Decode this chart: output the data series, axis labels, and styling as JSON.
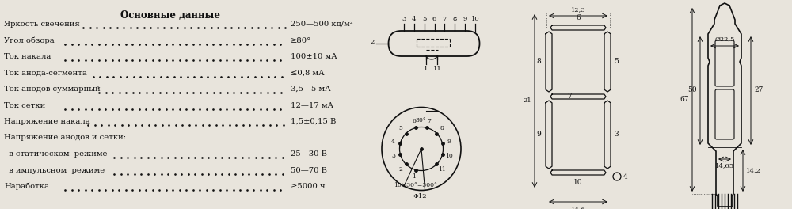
{
  "bg_color": "#e8e4dc",
  "title": "Основные данные",
  "rows": [
    [
      "Яркость свечения",
      "250—500 кд/м²"
    ],
    [
      "Угол обзора",
      "≥80°"
    ],
    [
      "Ток накала",
      "100±10 мА"
    ],
    [
      "Ток анода-сегмента",
      "≤0,8 мА"
    ],
    [
      "Ток анодов суммарный",
      "3,5—5 мА"
    ],
    [
      "Ток сетки",
      "12—17 мА"
    ],
    [
      "Напряжение накала",
      "1,5±0,15 В"
    ],
    [
      "Напряжение анодов и сетки:",
      ""
    ],
    [
      "  в статическом  режиме",
      "25—30 В"
    ],
    [
      "  в импульсном  режиме",
      "50—70 В"
    ],
    [
      "Наработка",
      "≥5000 ч"
    ]
  ],
  "lc": "#111111",
  "tc": "#111111",
  "fs": 7.2,
  "title_fs": 8.5
}
